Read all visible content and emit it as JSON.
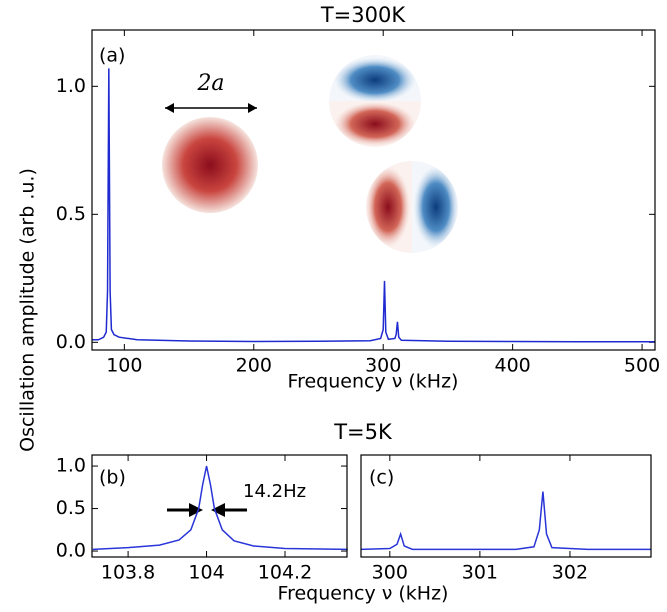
{
  "chart_data": [
    {
      "type": "line",
      "title": "T=300K",
      "panel_label": "(a)",
      "annotation": "2a",
      "x_label": "Frequency ν (kHz)",
      "y_label": "Oscillation amplitude (arb .u.)",
      "xlim": [
        75,
        510
      ],
      "xticks": [
        100,
        200,
        300,
        400,
        500
      ],
      "ylim": [
        -0.03,
        1.22
      ],
      "yticks": [
        {
          "value": 0,
          "label": "0.0"
        },
        0.5,
        {
          "value": 1,
          "label": "1.0"
        }
      ],
      "series": [
        {
          "color": "#1f2ad0",
          "x": [
            75,
            80,
            84,
            86,
            87,
            88,
            89,
            90,
            92,
            96,
            110,
            150,
            200,
            250,
            290,
            298,
            300,
            301,
            302,
            304,
            309,
            310,
            311,
            312,
            314,
            350,
            400,
            450,
            510
          ],
          "values": [
            0.01,
            0.01,
            0.02,
            0.04,
            0.2,
            1.07,
            0.2,
            0.05,
            0.03,
            0.02,
            0.01,
            0.005,
            0.003,
            0.004,
            0.006,
            0.015,
            0.05,
            0.24,
            0.04,
            0.012,
            0.015,
            0.03,
            0.08,
            0.02,
            0.008,
            0.004,
            0.003,
            0.002,
            0.002
          ]
        }
      ]
    },
    {
      "type": "line",
      "title": "T=5K",
      "panel_label": "(b)",
      "annotation": "14.2Hz",
      "x_label": "Frequency ν (kHz)",
      "xlim": [
        103.708,
        104.358
      ],
      "xticks": [
        103.8,
        104,
        104.2
      ],
      "ylim": [
        -0.07,
        1.13
      ],
      "yticks": [
        {
          "value": 0,
          "label": "0.0"
        },
        0.5,
        {
          "value": 1,
          "label": "1.0"
        }
      ],
      "series": [
        {
          "color": "#2a35d8",
          "x": [
            103.71,
            103.8,
            103.88,
            103.93,
            103.96,
            103.98,
            103.99,
            104.0,
            104.01,
            104.02,
            104.04,
            104.07,
            104.12,
            104.2,
            104.36
          ],
          "values": [
            0.02,
            0.04,
            0.07,
            0.13,
            0.25,
            0.5,
            0.78,
            1.0,
            0.78,
            0.5,
            0.25,
            0.12,
            0.06,
            0.03,
            0.02
          ]
        }
      ]
    },
    {
      "type": "line",
      "panel_label": "(c)",
      "xlim": [
        299.68,
        302.9
      ],
      "xticks": [
        300,
        301,
        302
      ],
      "ylim": [
        -0.07,
        1.13
      ],
      "series": [
        {
          "color": "#2a35d8",
          "x": [
            299.68,
            300.0,
            300.08,
            300.12,
            300.16,
            300.25,
            300.8,
            301.4,
            301.6,
            301.66,
            301.7,
            301.74,
            301.8,
            302.2,
            302.9
          ],
          "values": [
            0.02,
            0.03,
            0.08,
            0.2,
            0.06,
            0.02,
            0.02,
            0.02,
            0.05,
            0.25,
            0.7,
            0.2,
            0.04,
            0.02,
            0.02
          ]
        }
      ]
    }
  ]
}
